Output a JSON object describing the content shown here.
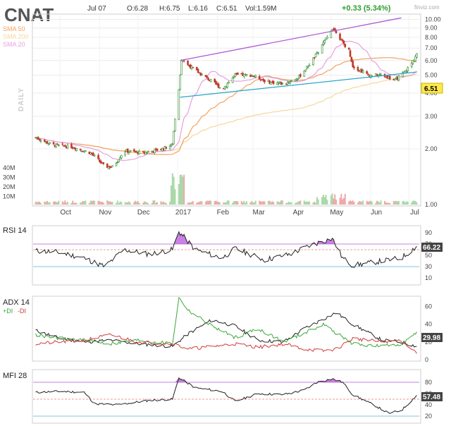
{
  "header": {
    "ticker": "CNAT",
    "date": "Jul 07",
    "open": "O:6.28",
    "high": "H:6.75",
    "low": "L:6.16",
    "close": "C:6.51",
    "volume": "Vol:1.59M",
    "change": "+0.33 (5.34%)",
    "watermark": "finviz.com"
  },
  "colors": {
    "up": "#2e8b2e",
    "down": "#c0392b",
    "sma20": "#e5a0e0",
    "sma50": "#f4a261",
    "sma200": "#f6d79c",
    "trend_upper": "#b05ad6",
    "trend_lower": "#2aa6c9",
    "rsi_line": "#222222",
    "plus_di": "#3aa63a",
    "minus_di": "#d03a3a",
    "adx": "#222222",
    "overbought_fill": "#b44cd6",
    "change_color": "#2e9e2e",
    "last_price_bg": "#ffe94d"
  },
  "chart_data": [
    {
      "type": "candlestick",
      "title": "CNAT",
      "period_label": "DAILY",
      "legend": [
        {
          "name": "SMA 50",
          "color": "#f4a261"
        },
        {
          "name": "SMA 200",
          "color": "#f6d79c"
        },
        {
          "name": "SMA 20",
          "color": "#e5a0e0"
        }
      ],
      "x_ticks": [
        "Oct",
        "Nov",
        "Dec",
        "2017",
        "Feb",
        "Mar",
        "Apr",
        "May",
        "Jun",
        "Jul"
      ],
      "y_scale": "log",
      "y_ticks": [
        "10.00",
        "9.00",
        "8.00",
        "7.00",
        "6.00",
        "5.00",
        "4.00",
        "3.00",
        "2.00",
        "1.00"
      ],
      "y_tick_values": [
        10,
        9,
        8,
        7,
        6,
        5,
        4,
        3,
        2,
        1
      ],
      "ylim": [
        1.0,
        10.5
      ],
      "last_price": "6.51",
      "volume_axis_ticks": [
        "40M",
        "30M",
        "20M",
        "10M"
      ],
      "price_anchors": [
        [
          "2016-09-12",
          2.3
        ],
        [
          "2016-09-25",
          2.1
        ],
        [
          "2016-10-10",
          2.05
        ],
        [
          "2016-10-25",
          1.9
        ],
        [
          "2016-11-05",
          1.6
        ],
        [
          "2016-11-12",
          1.6
        ],
        [
          "2016-11-20",
          1.95
        ],
        [
          "2016-12-05",
          1.9
        ],
        [
          "2016-12-20",
          2.0
        ],
        [
          "2016-12-28",
          2.1
        ],
        [
          "2017-01-02",
          4.2
        ],
        [
          "2017-01-04",
          6.0
        ],
        [
          "2017-01-15",
          5.3
        ],
        [
          "2017-01-28",
          4.6
        ],
        [
          "2017-02-05",
          4.2
        ],
        [
          "2017-02-15",
          5.0
        ],
        [
          "2017-02-28",
          5.0
        ],
        [
          "2017-03-12",
          4.6
        ],
        [
          "2017-03-25",
          4.5
        ],
        [
          "2017-04-05",
          4.8
        ],
        [
          "2017-04-12",
          5.5
        ],
        [
          "2017-04-20",
          6.5
        ],
        [
          "2017-04-28",
          8.0
        ],
        [
          "2017-05-02",
          9.0
        ],
        [
          "2017-05-05",
          8.6
        ],
        [
          "2017-05-10",
          7.5
        ],
        [
          "2017-05-15",
          6.8
        ],
        [
          "2017-05-18",
          5.6
        ],
        [
          "2017-05-30",
          5.0
        ],
        [
          "2017-06-10",
          5.0
        ],
        [
          "2017-06-20",
          4.7
        ],
        [
          "2017-06-28",
          5.2
        ],
        [
          "2017-07-03",
          5.8
        ],
        [
          "2017-07-07",
          6.51
        ]
      ],
      "trendline_upper": [
        [
          "2017-01-03",
          6.0
        ],
        [
          "2017-06-25",
          10.2
        ]
      ],
      "trendline_lower": [
        [
          "2017-01-03",
          3.8
        ],
        [
          "2017-07-07",
          5.2
        ]
      ]
    },
    {
      "type": "line",
      "title": "RSI 14",
      "y_ticks": [
        "90",
        "70",
        "50",
        "30",
        "10"
      ],
      "y_tick_values": [
        90,
        70,
        50,
        30,
        10
      ],
      "ylim": [
        0,
        100
      ],
      "reference_lines": [
        70,
        30
      ],
      "last_value": "66.22",
      "series": [
        {
          "values": [
            [
              "2016-09-12",
              58
            ],
            [
              "2016-10-01",
              55
            ],
            [
              "2016-10-20",
              45
            ],
            [
              "2016-11-05",
              30
            ],
            [
              "2016-11-20",
              60
            ],
            [
              "2016-12-10",
              52
            ],
            [
              "2016-12-28",
              60
            ],
            [
              "2017-01-02",
              92
            ],
            [
              "2017-01-15",
              60
            ],
            [
              "2017-02-05",
              45
            ],
            [
              "2017-02-15",
              62
            ],
            [
              "2017-03-10",
              42
            ],
            [
              "2017-03-30",
              52
            ],
            [
              "2017-04-15",
              68
            ],
            [
              "2017-05-02",
              80
            ],
            [
              "2017-05-10",
              45
            ],
            [
              "2017-05-18",
              32
            ],
            [
              "2017-06-10",
              40
            ],
            [
              "2017-06-25",
              45
            ],
            [
              "2017-07-07",
              66
            ]
          ]
        }
      ]
    },
    {
      "type": "line",
      "title": "ADX 14",
      "legend": [
        {
          "name": "+DI",
          "color": "#3aa63a"
        },
        {
          "name": "-DI",
          "color": "#d03a3a"
        }
      ],
      "y_ticks": [
        "60",
        "40",
        "20",
        "0"
      ],
      "y_tick_values": [
        60,
        40,
        20,
        0
      ],
      "ylim": [
        0,
        70
      ],
      "last_value": "29.98",
      "series": [
        {
          "name": "ADX",
          "color": "#222222",
          "values": [
            [
              "2016-09-12",
              33
            ],
            [
              "2016-10-01",
              24
            ],
            [
              "2016-10-20",
              20
            ],
            [
              "2016-11-10",
              22
            ],
            [
              "2016-12-01",
              18
            ],
            [
              "2016-12-28",
              15
            ],
            [
              "2017-01-10",
              30
            ],
            [
              "2017-01-28",
              45
            ],
            [
              "2017-02-15",
              38
            ],
            [
              "2017-03-05",
              22
            ],
            [
              "2017-03-25",
              20
            ],
            [
              "2017-04-10",
              35
            ],
            [
              "2017-05-05",
              53
            ],
            [
              "2017-05-18",
              40
            ],
            [
              "2017-06-10",
              22
            ],
            [
              "2017-06-25",
              20
            ],
            [
              "2017-07-07",
              15
            ]
          ]
        },
        {
          "name": "+DI",
          "color": "#3aa63a",
          "values": [
            [
              "2016-09-12",
              28
            ],
            [
              "2016-10-01",
              24
            ],
            [
              "2016-10-20",
              22
            ],
            [
              "2016-11-10",
              18
            ],
            [
              "2016-12-01",
              22
            ],
            [
              "2016-12-28",
              18
            ],
            [
              "2017-01-02",
              70
            ],
            [
              "2017-01-10",
              55
            ],
            [
              "2017-01-28",
              38
            ],
            [
              "2017-02-15",
              25
            ],
            [
              "2017-03-05",
              35
            ],
            [
              "2017-03-25",
              20
            ],
            [
              "2017-04-10",
              30
            ],
            [
              "2017-04-25",
              40
            ],
            [
              "2017-05-05",
              30
            ],
            [
              "2017-05-18",
              18
            ],
            [
              "2017-06-10",
              15
            ],
            [
              "2017-06-25",
              18
            ],
            [
              "2017-07-07",
              30
            ]
          ]
        },
        {
          "name": "-DI",
          "color": "#d03a3a",
          "values": [
            [
              "2016-09-12",
              18
            ],
            [
              "2016-10-01",
              20
            ],
            [
              "2016-10-20",
              22
            ],
            [
              "2016-11-10",
              28
            ],
            [
              "2016-12-01",
              20
            ],
            [
              "2016-12-28",
              18
            ],
            [
              "2017-01-10",
              12
            ],
            [
              "2017-01-28",
              15
            ],
            [
              "2017-02-15",
              18
            ],
            [
              "2017-03-05",
              14
            ],
            [
              "2017-03-25",
              18
            ],
            [
              "2017-04-10",
              12
            ],
            [
              "2017-04-25",
              10
            ],
            [
              "2017-05-05",
              12
            ],
            [
              "2017-05-18",
              24
            ],
            [
              "2017-06-10",
              20
            ],
            [
              "2017-06-25",
              22
            ],
            [
              "2017-07-07",
              8
            ]
          ]
        }
      ]
    },
    {
      "type": "line",
      "title": "MFI 28",
      "y_ticks": [
        "80",
        "60",
        "40",
        "20"
      ],
      "y_tick_values": [
        80,
        60,
        40,
        20
      ],
      "ylim": [
        10,
        100
      ],
      "reference_lines": [
        80,
        50,
        20
      ],
      "last_value": "57.48",
      "series": [
        {
          "values": [
            [
              "2016-09-12",
              62
            ],
            [
              "2016-10-01",
              64
            ],
            [
              "2016-10-20",
              62
            ],
            [
              "2016-10-28",
              42
            ],
            [
              "2016-11-15",
              40
            ],
            [
              "2016-12-10",
              48
            ],
            [
              "2016-12-28",
              50
            ],
            [
              "2017-01-02",
              88
            ],
            [
              "2017-01-15",
              70
            ],
            [
              "2017-02-05",
              64
            ],
            [
              "2017-02-15",
              46
            ],
            [
              "2017-03-05",
              60
            ],
            [
              "2017-03-25",
              58
            ],
            [
              "2017-04-10",
              66
            ],
            [
              "2017-04-20",
              80
            ],
            [
              "2017-05-02",
              86
            ],
            [
              "2017-05-10",
              80
            ],
            [
              "2017-05-18",
              58
            ],
            [
              "2017-06-05",
              38
            ],
            [
              "2017-06-15",
              25
            ],
            [
              "2017-06-25",
              30
            ],
            [
              "2017-07-07",
              57
            ]
          ]
        }
      ]
    }
  ]
}
